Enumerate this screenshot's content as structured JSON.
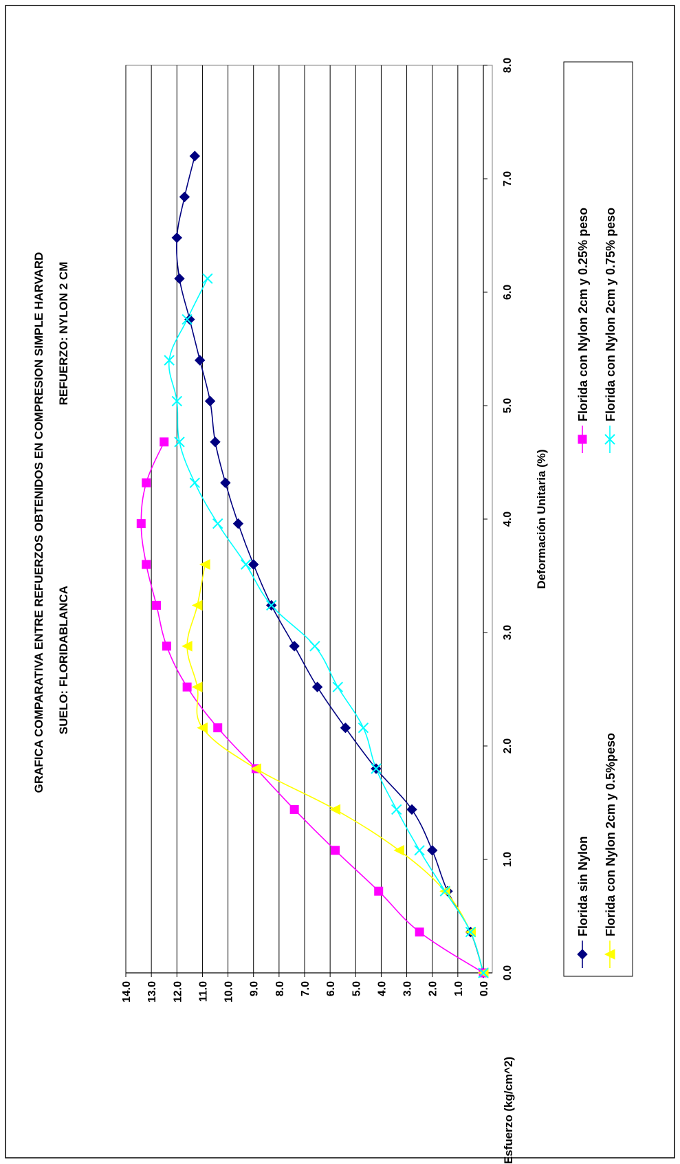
{
  "chart_data": {
    "type": "line",
    "title": "GRAFICA COMPARATIVA ENTRE REFUERZOS OBTENIDOS EN COMPRESION SIMPLE HARVARD",
    "subtitle_left": "SUELO: FLORIDABLANCA",
    "subtitle_right": "REFUERZO: NYLON 2 CM",
    "xlabel": "Deformación Unitaria (%)",
    "ylabel": "Esfuerzo (kg/cm^2)",
    "xlim": [
      0,
      8
    ],
    "ylim": [
      0,
      14
    ],
    "x_ticks": [
      "0.0",
      "1.0",
      "2.0",
      "3.0",
      "4.0",
      "5.0",
      "6.0",
      "7.0",
      "8.0"
    ],
    "y_ticks": [
      "0.0",
      "1.0",
      "2.0",
      "3.0",
      "4.0",
      "5.0",
      "6.0",
      "7.0",
      "8.0",
      "9.0",
      "10.0",
      "11.0",
      "12.0",
      "13.0",
      "14.0"
    ],
    "grid": "horizontal",
    "legend_position": "right",
    "series": [
      {
        "name": "Florida sin Nylon",
        "color": "#000080",
        "marker": "diamond",
        "x": [
          0.0,
          0.36,
          0.72,
          1.08,
          1.44,
          1.8,
          2.16,
          2.52,
          2.88,
          3.24,
          3.6,
          3.96,
          4.32,
          4.68,
          5.04,
          5.4,
          5.76,
          6.12,
          6.48,
          6.84,
          7.2
        ],
        "y": [
          0.0,
          0.5,
          1.4,
          2.0,
          2.8,
          4.2,
          5.4,
          6.5,
          7.4,
          8.3,
          9.0,
          9.6,
          10.1,
          10.5,
          10.7,
          11.1,
          11.5,
          11.9,
          12.0,
          11.7,
          11.3
        ]
      },
      {
        "name": "Florida con Nylon 2cm  y 0.25% peso",
        "color": "#FF00FF",
        "marker": "square",
        "x": [
          0.0,
          0.36,
          0.72,
          1.08,
          1.44,
          1.8,
          2.16,
          2.52,
          2.88,
          3.24,
          3.6,
          3.96,
          4.32,
          4.68
        ],
        "y": [
          0.0,
          2.5,
          4.1,
          5.8,
          7.4,
          8.9,
          10.4,
          11.6,
          12.4,
          12.8,
          13.2,
          13.4,
          13.2,
          12.5
        ]
      },
      {
        "name": "Florida con Nylon 2cm  y 0.5%peso",
        "color": "#FFFF00",
        "marker": "triangle",
        "x": [
          0.0,
          0.36,
          0.72,
          1.08,
          1.44,
          1.8,
          2.16,
          2.52,
          2.88,
          3.24,
          3.6
        ],
        "y": [
          0.0,
          0.5,
          1.5,
          3.3,
          5.8,
          8.9,
          11.0,
          11.2,
          11.6,
          11.2,
          10.9
        ]
      },
      {
        "name": "Florida con Nylon 2cm  y 0.75% peso",
        "color": "#00FFFF",
        "marker": "x",
        "x": [
          0.0,
          0.36,
          0.72,
          1.08,
          1.44,
          1.8,
          2.16,
          2.52,
          2.88,
          3.24,
          3.6,
          3.96,
          4.32,
          4.68,
          5.04,
          5.4,
          5.76,
          6.12
        ],
        "y": [
          0.0,
          0.5,
          1.5,
          2.5,
          3.4,
          4.2,
          4.7,
          5.7,
          6.6,
          8.3,
          9.3,
          10.4,
          11.3,
          11.9,
          12.0,
          12.3,
          11.6,
          10.8
        ]
      }
    ]
  }
}
